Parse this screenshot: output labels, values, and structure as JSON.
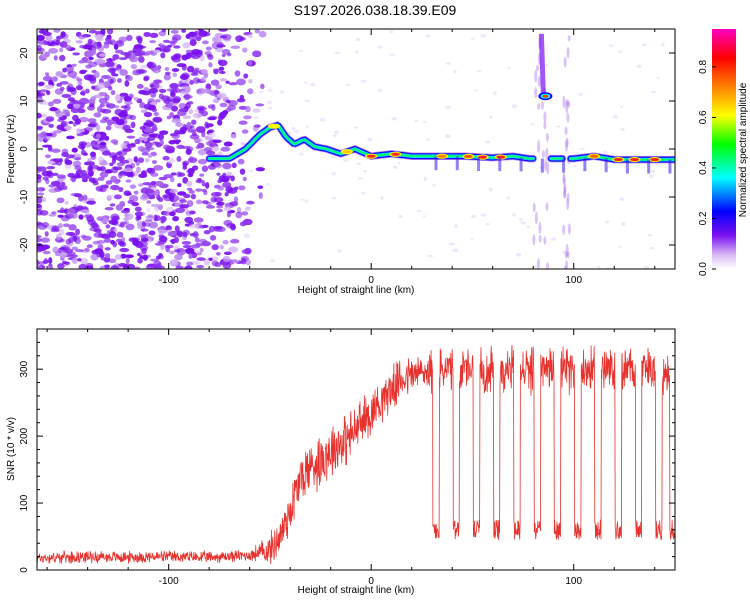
{
  "figure_title": "S197.2026.038.18.39.E09",
  "chart_data": [
    {
      "type": "heatmap",
      "title": "",
      "xlabel": "Height of straight line (km)",
      "ylabel": "Frequency (Hz)",
      "xlim": [
        -165,
        150
      ],
      "ylim": [
        -25,
        25
      ],
      "xticks": [
        -100,
        0,
        100
      ],
      "yticks": [
        -20,
        -10,
        0,
        10,
        20
      ],
      "colorbar": {
        "label": "Normalized spectral amplitude",
        "range": [
          0,
          0.95
        ],
        "ticks": [
          0.0,
          0.2,
          0.4,
          0.6,
          0.8
        ],
        "tick_labels": [
          "0.0",
          "0.2",
          "0.4",
          "0.6",
          "0.8"
        ],
        "colors": [
          "#ffffff",
          "#d9b7f5",
          "#7a10f0",
          "#0000ff",
          "#00ffff",
          "#00ff00",
          "#ffff00",
          "#ff8000",
          "#ff0000",
          "#ff00c0"
        ]
      },
      "ridge": {
        "x": [
          -80,
          -70,
          -62,
          -55,
          -50,
          -46,
          -42,
          -38,
          -33,
          -28,
          -22,
          -15,
          -8,
          0,
          10,
          20,
          30,
          45,
          60,
          70,
          78,
          88,
          100,
          110,
          120,
          130,
          140,
          150
        ],
        "y": [
          -2,
          -2,
          0,
          3,
          4.5,
          5,
          2.5,
          1,
          2,
          0.5,
          0,
          -1,
          0,
          -1.5,
          -1,
          -1.5,
          -1.5,
          -1.5,
          -1.8,
          -1.5,
          -2,
          -2,
          -2,
          -1.5,
          -2.2,
          -2.2,
          -2.2,
          -2.2
        ]
      },
      "noise_region_x": [
        -165,
        -62
      ],
      "gap_x": [
        [
          80,
          88
        ],
        [
          95,
          98
        ]
      ],
      "side_feature": {
        "x": 86,
        "y": 11
      }
    },
    {
      "type": "line",
      "title": "",
      "xlabel": "Height of straight line (km)",
      "ylabel": "SNR (10 * v/v)",
      "xlim": [
        -165,
        150
      ],
      "ylim": [
        0,
        360
      ],
      "xticks": [
        -100,
        0,
        100
      ],
      "yticks": [
        0,
        100,
        200,
        300
      ],
      "color": "#e8322e",
      "series": [
        {
          "name": "SNR",
          "x": [
            -165,
            -140,
            -120,
            -100,
            -80,
            -60,
            -50,
            -45,
            -40,
            -35,
            -30,
            -25,
            -20,
            -15,
            -10,
            -5,
            0,
            5,
            10,
            15,
            20,
            25,
            30,
            40,
            50,
            60,
            80,
            100,
            120,
            140,
            150
          ],
          "values": [
            18,
            20,
            19,
            20,
            19,
            22,
            30,
            50,
            90,
            135,
            155,
            165,
            180,
            190,
            200,
            220,
            235,
            255,
            270,
            285,
            292,
            295,
            297,
            298,
            298,
            298,
            298,
            298,
            298,
            298,
            298
          ]
        }
      ],
      "dropouts": {
        "x": [
          32,
          42,
          52,
          62,
          72,
          82,
          92,
          102,
          112,
          122,
          132,
          142,
          149
        ],
        "level": 60
      },
      "noise_amplitude": [
        [
          -165,
          10
        ],
        [
          -60,
          10
        ],
        [
          -40,
          45
        ],
        [
          -20,
          50
        ],
        [
          0,
          40
        ],
        [
          20,
          35
        ],
        [
          40,
          40
        ],
        [
          150,
          40
        ]
      ]
    }
  ]
}
